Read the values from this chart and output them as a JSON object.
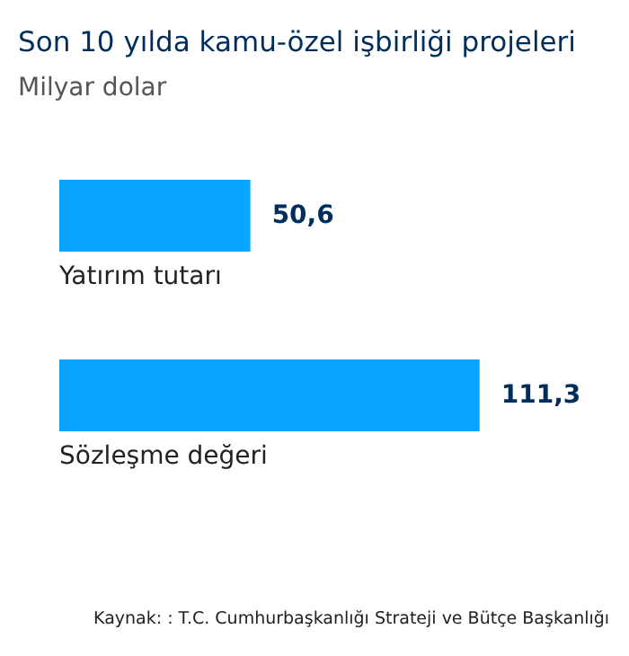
{
  "chart_data": {
    "type": "bar",
    "orientation": "horizontal",
    "title": "Son 10 yılda kamu-özel işbirliği projeleri",
    "subtitle": "Milyar dolar",
    "categories": [
      "Yatırım tutarı",
      "Sözleşme değeri"
    ],
    "values": [
      50.6,
      111.3
    ],
    "value_labels": [
      "50,6",
      "111,3"
    ],
    "color": "#0aa5ff",
    "tick_labels": false,
    "annotations": [
      "Kaynak: : T.C. Cumhurbaşkanlığı Strateji ve Bütçe Başkanlığı"
    ]
  }
}
